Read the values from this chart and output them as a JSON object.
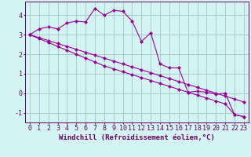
{
  "xlabel": "Windchill (Refroidissement éolien,°C)",
  "bg_color": "#d4f4f4",
  "grid_color": "#aacccc",
  "line_color": "#990099",
  "xlim": [
    -0.5,
    23.5
  ],
  "ylim": [
    -1.5,
    4.7
  ],
  "xticks": [
    0,
    1,
    2,
    3,
    4,
    5,
    6,
    7,
    8,
    9,
    10,
    11,
    12,
    13,
    14,
    15,
    16,
    17,
    18,
    19,
    20,
    21,
    22,
    23
  ],
  "yticks": [
    -1,
    0,
    1,
    2,
    3,
    4
  ],
  "series1_x": [
    0,
    1,
    2,
    3,
    4,
    5,
    6,
    7,
    8,
    9,
    10,
    11,
    12,
    13,
    14,
    15,
    16,
    17,
    18,
    19,
    20,
    21,
    22,
    23
  ],
  "series1_y": [
    3.0,
    3.3,
    3.4,
    3.3,
    3.6,
    3.7,
    3.65,
    4.35,
    4.0,
    4.25,
    4.2,
    3.7,
    2.65,
    3.1,
    1.5,
    1.3,
    1.3,
    0.05,
    0.1,
    0.05,
    -0.05,
    0.0,
    -1.1,
    -1.2
  ],
  "series2_x": [
    0,
    1,
    2,
    3,
    4,
    5,
    6,
    7,
    8,
    9,
    10,
    11,
    12,
    13,
    14,
    15,
    16,
    17,
    18,
    19,
    20,
    21,
    22,
    23
  ],
  "series2_y": [
    3.0,
    2.85,
    2.7,
    2.55,
    2.4,
    2.25,
    2.1,
    1.95,
    1.8,
    1.65,
    1.5,
    1.35,
    1.2,
    1.05,
    0.9,
    0.75,
    0.6,
    0.45,
    0.3,
    0.15,
    0.0,
    -0.15,
    -0.3,
    -0.45
  ],
  "series3_x": [
    0,
    1,
    2,
    3,
    4,
    5,
    6,
    7,
    8,
    9,
    10,
    11,
    12,
    13,
    14,
    15,
    16,
    17,
    18,
    19,
    20,
    21,
    22,
    23
  ],
  "series3_y": [
    3.0,
    2.8,
    2.6,
    2.4,
    2.2,
    2.0,
    1.8,
    1.6,
    1.4,
    1.25,
    1.1,
    0.95,
    0.8,
    0.65,
    0.5,
    0.35,
    0.2,
    0.05,
    -0.1,
    -0.25,
    -0.4,
    -0.55,
    -1.1,
    -1.2
  ],
  "marker": "D",
  "markersize": 2.5,
  "linewidth": 0.8,
  "xlabel_fontsize": 6.5,
  "tick_fontsize": 6
}
